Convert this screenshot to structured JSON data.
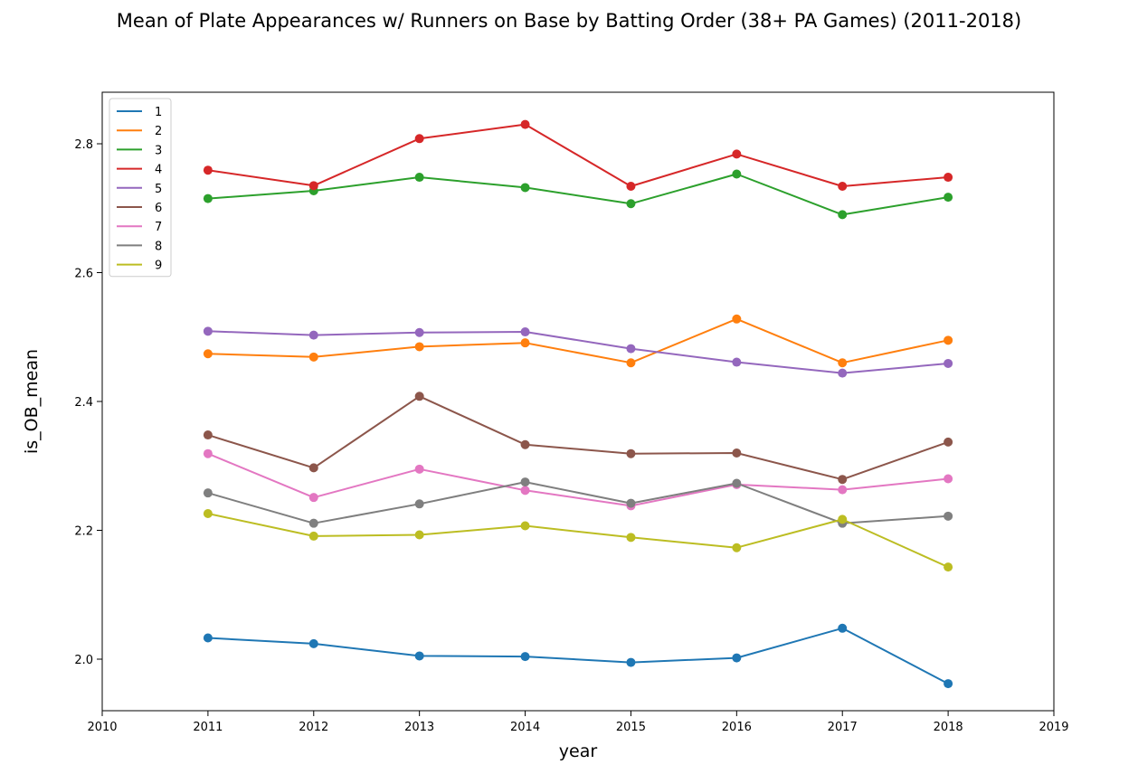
{
  "chart_data": {
    "type": "line",
    "title": "Mean of Plate Appearances w/ Runners on Base by Batting Order (38+ PA Games) (2011-2018)",
    "xlabel": "year",
    "ylabel": "is_OB_mean",
    "xlim": [
      2010,
      2019
    ],
    "ylim": [
      1.92,
      2.88
    ],
    "xticks": [
      2010,
      2011,
      2012,
      2013,
      2014,
      2015,
      2016,
      2017,
      2018,
      2019
    ],
    "yticks": [
      2.0,
      2.2,
      2.4,
      2.6,
      2.8
    ],
    "ytick_labels": [
      "2.0",
      "2.2",
      "2.4",
      "2.6",
      "2.8"
    ],
    "grid": false,
    "legend_position": "top-left",
    "x": [
      2011,
      2012,
      2013,
      2014,
      2015,
      2016,
      2017,
      2018
    ],
    "series": [
      {
        "name": "1",
        "color": "#1f77b4",
        "values": [
          2.033,
          2.024,
          2.005,
          2.004,
          1.995,
          2.002,
          2.048,
          1.962
        ]
      },
      {
        "name": "2",
        "color": "#ff7f0e",
        "values": [
          2.474,
          2.469,
          2.485,
          2.491,
          2.46,
          2.528,
          2.46,
          2.495
        ]
      },
      {
        "name": "3",
        "color": "#2ca02c",
        "values": [
          2.715,
          2.727,
          2.748,
          2.732,
          2.707,
          2.753,
          2.69,
          2.717
        ]
      },
      {
        "name": "4",
        "color": "#d62728",
        "values": [
          2.759,
          2.735,
          2.808,
          2.83,
          2.734,
          2.784,
          2.734,
          2.748
        ]
      },
      {
        "name": "5",
        "color": "#9467bd",
        "values": [
          2.509,
          2.503,
          2.507,
          2.508,
          2.482,
          2.461,
          2.444,
          2.459
        ]
      },
      {
        "name": "6",
        "color": "#8c564b",
        "values": [
          2.348,
          2.297,
          2.408,
          2.333,
          2.319,
          2.32,
          2.279,
          2.337
        ]
      },
      {
        "name": "7",
        "color": "#e377c2",
        "values": [
          2.319,
          2.251,
          2.295,
          2.262,
          2.238,
          2.271,
          2.263,
          2.28
        ]
      },
      {
        "name": "8",
        "color": "#7f7f7f",
        "values": [
          2.258,
          2.211,
          2.241,
          2.275,
          2.242,
          2.273,
          2.211,
          2.222
        ]
      },
      {
        "name": "9",
        "color": "#bcbd22",
        "values": [
          2.226,
          2.191,
          2.193,
          2.207,
          2.189,
          2.173,
          2.217,
          2.143
        ]
      }
    ]
  }
}
